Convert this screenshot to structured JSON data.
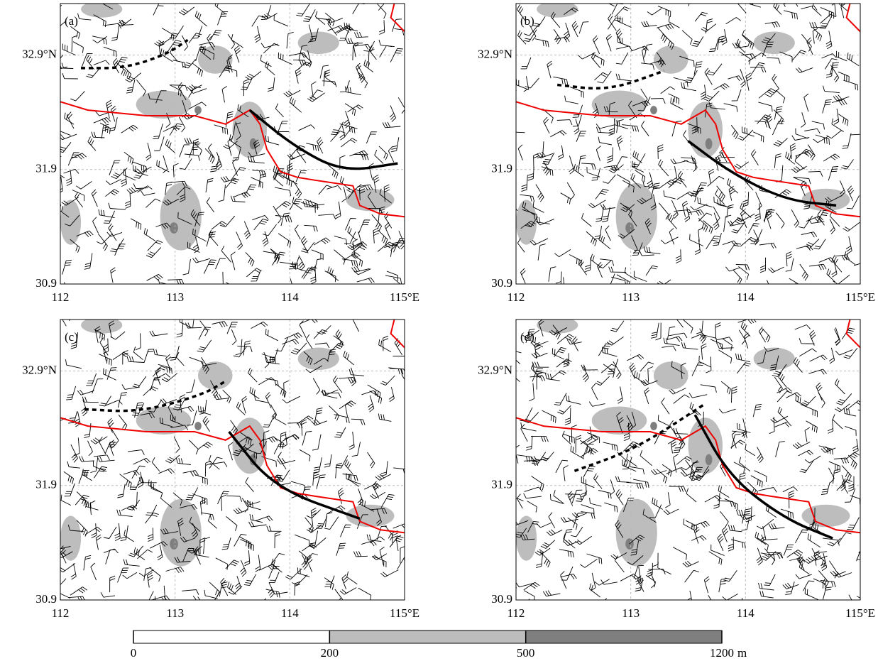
{
  "panels": [
    {
      "label": "(a)",
      "xlim": [
        112,
        115
      ],
      "ylim": [
        30.9,
        33.35
      ],
      "xticks": [
        112,
        113,
        114,
        {
          "value": 115,
          "label": "115°E"
        }
      ],
      "yticks": [
        30.9,
        31.9,
        {
          "value": 32.9,
          "label": "32.9°N"
        }
      ]
    },
    {
      "label": "(b)",
      "xlim": [
        112,
        115
      ],
      "ylim": [
        30.9,
        33.35
      ],
      "xticks": [
        112,
        113,
        114,
        {
          "value": 115,
          "label": "115°E"
        }
      ],
      "yticks": [
        30.9,
        31.9,
        {
          "value": 32.9,
          "label": "32.9°N"
        }
      ]
    },
    {
      "label": "(c)",
      "xlim": [
        112,
        115
      ],
      "ylim": [
        30.9,
        33.35
      ],
      "xticks": [
        112,
        113,
        114,
        {
          "value": 115,
          "label": "115°E"
        }
      ],
      "yticks": [
        30.9,
        31.9,
        {
          "value": 32.9,
          "label": "32.9°N"
        }
      ]
    },
    {
      "label": "(d)",
      "xlim": [
        112,
        115
      ],
      "ylim": [
        30.9,
        33.35
      ],
      "xticks": [
        112,
        113,
        114,
        {
          "value": 115,
          "label": "115°E"
        }
      ],
      "yticks": [
        30.9,
        31.9,
        {
          "value": 32.9,
          "label": "32.9°N"
        }
      ]
    }
  ],
  "colorbar": {
    "levels": [
      0,
      200,
      500,
      1200
    ],
    "colors": [
      "#ffffff",
      "#bdbdbd",
      "#7f7f7f"
    ],
    "unit": "m"
  }
}
